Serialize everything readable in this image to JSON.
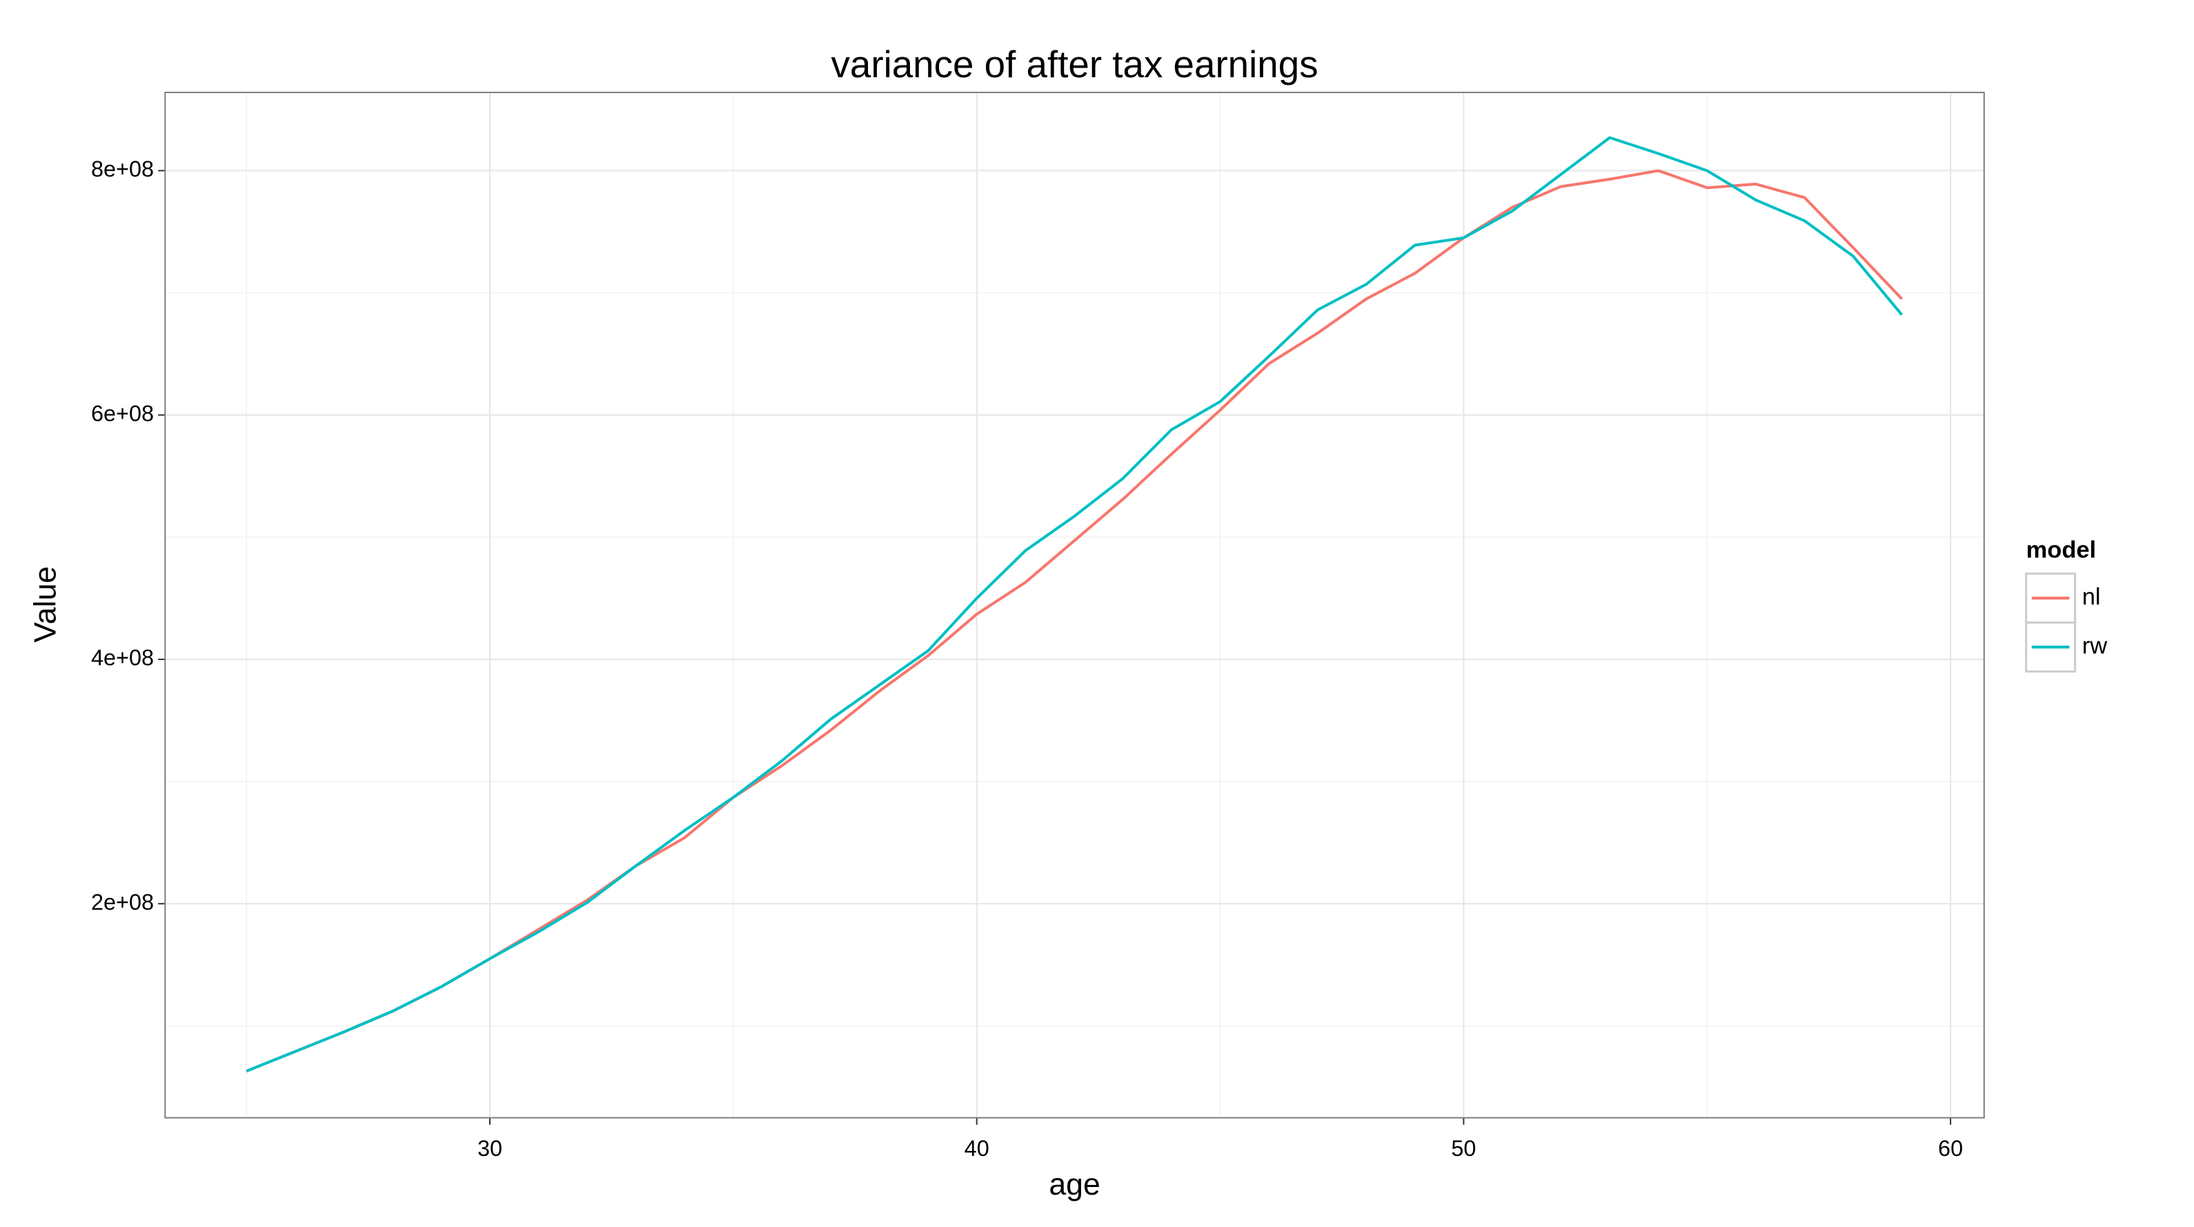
{
  "chart_data": {
    "type": "line",
    "title": "variance of after tax earnings",
    "x_label": "age",
    "y_label": "Value",
    "legend_title": "model",
    "legend_position": "right",
    "grid": true,
    "x": [
      25,
      26,
      27,
      28,
      29,
      30,
      31,
      32,
      33,
      34,
      35,
      36,
      37,
      38,
      39,
      40,
      41,
      42,
      43,
      44,
      45,
      46,
      47,
      48,
      49,
      50,
      51,
      52,
      53,
      54,
      55,
      56,
      57,
      58,
      59
    ],
    "series": [
      {
        "name": "nl",
        "color": "#f8766d",
        "values": [
          63000000,
          79000000,
          95000000,
          112000000,
          132000000,
          155000000,
          179000000,
          203000000,
          231000000,
          254000000,
          287000000,
          313000000,
          342000000,
          374000000,
          403000000,
          437000000,
          463000000,
          497000000,
          531000000,
          568000000,
          604000000,
          642000000,
          667000000,
          695000000,
          716000000,
          745000000,
          770000000,
          787000000,
          793000000,
          800000000,
          786000000,
          789000000,
          778000000,
          737000000,
          695000000
        ]
      },
      {
        "name": "rw",
        "color": "#00bfc4",
        "values": [
          63000000,
          79000000,
          95000000,
          112000000,
          132000000,
          155000000,
          177000000,
          201000000,
          231000000,
          260000000,
          287000000,
          317000000,
          351000000,
          379000000,
          407000000,
          450000000,
          489000000,
          517000000,
          548000000,
          588000000,
          611000000,
          648000000,
          686000000,
          707000000,
          739000000,
          745000000,
          767000000,
          797000000,
          827000000,
          814000000,
          800000000,
          776000000,
          759000000,
          730000000,
          682000000
        ]
      }
    ],
    "xlim": [
      23.33,
      60.69
    ],
    "ylim": [
      24800000,
      864000000
    ],
    "xticks": [
      30,
      40,
      50,
      60
    ],
    "x_minor_grid": [
      25,
      35,
      45,
      55
    ],
    "yticks": [
      {
        "value": 200000000,
        "label": "2e+08"
      },
      {
        "value": 400000000,
        "label": "4e+08"
      },
      {
        "value": 600000000,
        "label": "6e+08"
      },
      {
        "value": 800000000,
        "label": "8e+08"
      }
    ],
    "y_minor_grid": [
      100000000,
      300000000,
      500000000,
      700000000
    ]
  }
}
